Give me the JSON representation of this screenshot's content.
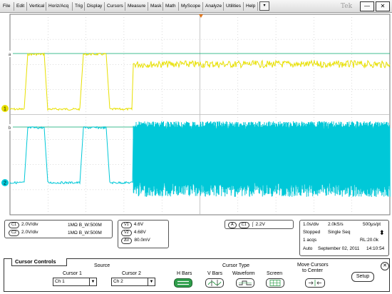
{
  "menu": {
    "items": [
      "File",
      "Edit",
      "Vertical",
      "Horiz/Acq",
      "Trig",
      "Display",
      "Cursors",
      "Measure",
      "Mask",
      "Math",
      "MyScope",
      "Analyze",
      "Utilities",
      "Help"
    ],
    "dropdown": "▾",
    "brand": "Tek",
    "minimize": "—",
    "close": "✕"
  },
  "channels": {
    "ch1_marker": "1",
    "ch2_marker": "2",
    "cursor_a": "a",
    "cursor_b": "b",
    "colors": {
      "ch1": "#e8e000",
      "ch2": "#00c8d8",
      "cursor": "#00a86b",
      "grid": "#b8b8b8",
      "trigger": "#e07820"
    }
  },
  "readouts": {
    "c1_label": "C1",
    "c1_scale": "2.0V/div",
    "c1_info": "1MΩ B_W:500M",
    "c2_label": "C2",
    "c2_scale": "2.0V/div",
    "c2_info": "1MΩ B_W:500M",
    "v1_label": "V1",
    "v1_value": "4.6V",
    "v2_label": "V2",
    "v2_value": "4.68V",
    "dv_label": "ΔV",
    "dv_value": "80.0mV",
    "trig_a": "A",
    "trig_ch": "C1",
    "trig_slope": "⌠",
    "trig_level": "2.2V",
    "timebase": "1.0s/div",
    "sample_rate": "2.0kS/s",
    "resolution": "500μs/pt",
    "status": "Stopped",
    "mode": "Single Seq",
    "acqs": "1 acqs",
    "record_length": "RL:20.0k",
    "trigger_mode": "Auto",
    "date": "September 02, 2011",
    "time": "14:10:54"
  },
  "cursor_controls": {
    "title": "Cursor Controls",
    "source_label": "Source",
    "cursor1_label": "Cursor 1",
    "cursor1_value": "Ch 1",
    "cursor2_label": "Cursor 2",
    "cursor2_value": "Ch 2",
    "type_label": "Cursor Type",
    "hbars_label": "H Bars",
    "vbars_label": "V Bars",
    "waveform_label": "Waveform",
    "screen_label": "Screen",
    "move_label_1": "Move Cursors",
    "move_label_2": "to Center",
    "setup_label": "Setup",
    "close_icon": "✕"
  }
}
